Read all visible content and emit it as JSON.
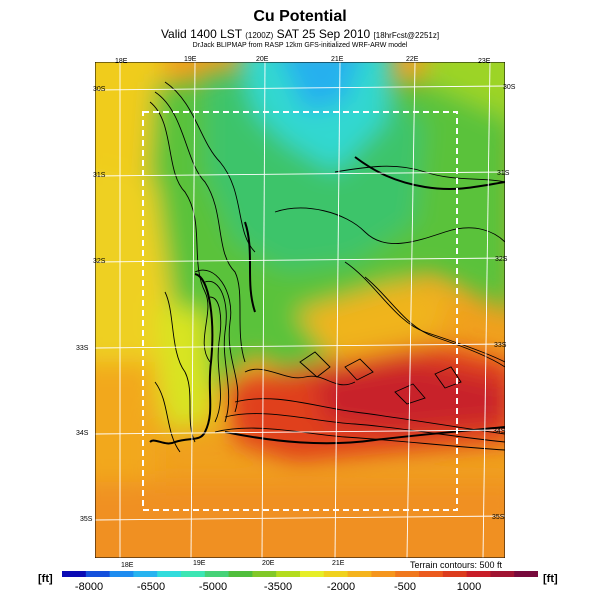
{
  "header": {
    "title": "Cu Potential",
    "subtitle_main": "Valid 1400 LST",
    "subtitle_small": "(1200Z)",
    "subtitle_date": "SAT 25 Sep 2010",
    "subtitle_fcst": "[18hrFcst@2251z]",
    "credit": "DrJack BLIPMAP from RASP 12km GFS-initialized WRF-ARW model"
  },
  "map": {
    "lon_labels_top": [
      "18E",
      "19E",
      "20E",
      "21E",
      "22E",
      "23E"
    ],
    "lon_labels_bottom": [
      "18E",
      "19E",
      "20E",
      "21E"
    ],
    "lat_labels_left": [
      "30S",
      "31S",
      "32S",
      "33S",
      "34S",
      "35S"
    ],
    "lat_labels_right": [
      "30S",
      "31S",
      "32S",
      "33S",
      "34S",
      "35S"
    ],
    "terrain_note": "Terrain contours: 500 ft"
  },
  "colorbar": {
    "unit_left": "[ft]",
    "unit_right": "[ft]",
    "tick_labels": [
      "-8000",
      "-6500",
      "-5000",
      "-3500",
      "-2000",
      "-500",
      "1000"
    ],
    "colors": [
      "#0a0ab4",
      "#1450dc",
      "#1e8cf0",
      "#28b4f0",
      "#32dcdc",
      "#3ce6b4",
      "#46d278",
      "#50be3c",
      "#82c828",
      "#b4dc1e",
      "#e6ee28",
      "#f0d21e",
      "#f5b41e",
      "#f5961e",
      "#f0781e",
      "#eb5a1e",
      "#dc3c1e",
      "#c81e28",
      "#a01432",
      "#780a3c"
    ]
  }
}
